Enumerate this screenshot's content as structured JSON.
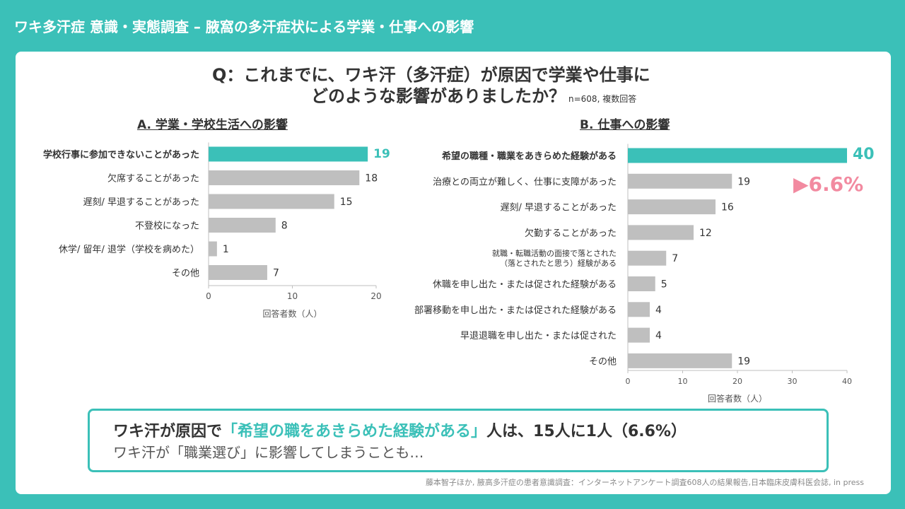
{
  "header": {
    "title": "ワキ多汗症 意識・実態調査 – 腋窩の多汗症状による学業・仕事への影響"
  },
  "question": {
    "line1": "Q：これまでに、ワキ汗（多汗症）が原因で学業や仕事に",
    "line2": "どのような影響がありましたか？",
    "note": "n=608, 複数回答"
  },
  "colors": {
    "accent": "#3bc0b8",
    "bar": "#bfbfbf",
    "callout": "#f28aa0"
  },
  "callout": {
    "text": "▶6.6%"
  },
  "highlight": {
    "pre": "ワキ汗が原因で",
    "accent": "「希望の職をあきらめた経験がある」",
    "post": "人は、15人に1人（6.6%）",
    "line2": "ワキ汗が「職業選び」に影響してしまうことも…"
  },
  "source": "藤本智子ほか, 腋高多汗症の患者意識調査：インターネットアンケート調査608人の結果報告,日本臨床皮膚科医会誌, in press",
  "chart_data": [
    {
      "type": "bar",
      "orientation": "horizontal",
      "title": "A. 学業・学校生活への影響",
      "categories": [
        "学校行事に参加できないことがあった",
        "欠席することがあった",
        "遅刻/ 早退することがあった",
        "不登校になった",
        "休学/ 留年/ 退学（学校を病めた）",
        "その他"
      ],
      "values": [
        19,
        18,
        15,
        8,
        1,
        7
      ],
      "highlight_index": 0,
      "xlabel": "回答者数（人）",
      "xlim": [
        0,
        20
      ],
      "xticks": [
        0,
        10,
        20
      ]
    },
    {
      "type": "bar",
      "orientation": "horizontal",
      "title": "B. 仕事への影響",
      "categories": [
        "希望の職種・職業をあきらめた経験がある",
        "治療との両立が難しく、仕事に支障があった",
        "遅刻/ 早退することがあった",
        "欠勤することがあった",
        [
          "就職・転職活動の面接で落とされた",
          "（落とされたと思う）経験がある"
        ],
        "休職を申し出た・または促された経験がある",
        "部署移動を申し出た・または促された経験がある",
        "早退退職を申し出た・または促された",
        "その他"
      ],
      "values": [
        40,
        19,
        16,
        12,
        7,
        5,
        4,
        4,
        19
      ],
      "highlight_index": 0,
      "xlabel": "回答者数（人）",
      "xlim": [
        0,
        40
      ],
      "xticks": [
        0,
        10,
        20,
        30,
        40
      ]
    }
  ]
}
